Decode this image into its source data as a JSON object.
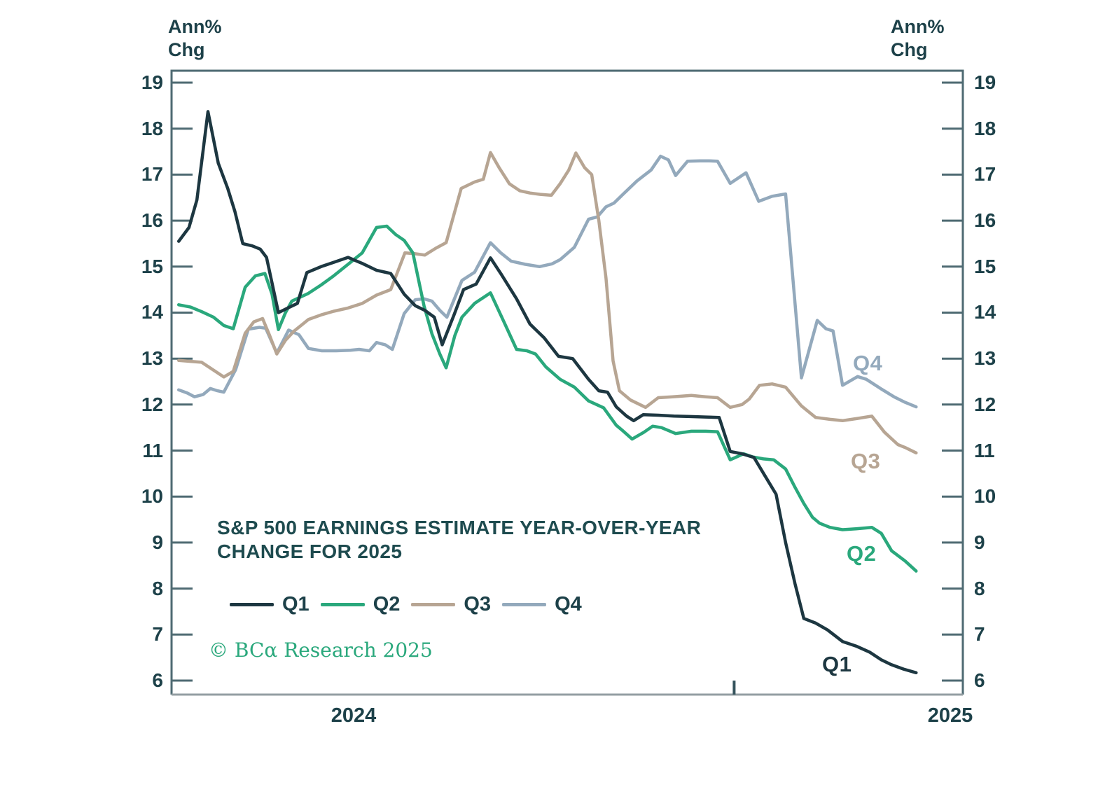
{
  "page": {
    "background": "#ffffff"
  },
  "axis_units": {
    "left": {
      "line1": "Ann%",
      "line2": "Chg"
    },
    "right": {
      "line1": "Ann%",
      "line2": "Chg"
    }
  },
  "footer": {
    "copyright": "© BCα Research 2025",
    "color": "#2aa87c"
  },
  "chart_data": {
    "type": "line",
    "title_line1": "S&P 500 EARNINGS ESTIMATE YEAR-OVER-YEAR",
    "title_line2": "CHANGE FOR 2025",
    "grid": false,
    "legend_position": "inside-bottom-left",
    "y_axis": {
      "unit": "Ann% Chg",
      "min": 6,
      "max": 19,
      "tick_step": 1,
      "sides": "both",
      "ticks": [
        19,
        18,
        17,
        16,
        15,
        14,
        13,
        12,
        11,
        10,
        9,
        8,
        7,
        6
      ]
    },
    "x_axis": {
      "note": "weekly estimate revisions, early 2024 through mid 2025; t = fraction of axis width",
      "labels": [
        {
          "text": "2024",
          "t": 0.23
        },
        {
          "text": "2025",
          "t": 0.984
        }
      ],
      "year_boundary_tick_t": 0.711
    },
    "legend": [
      {
        "label": "Q1",
        "color": "#1d3741"
      },
      {
        "label": "Q2",
        "color": "#2aa87c"
      },
      {
        "label": "Q3",
        "color": "#b7a593"
      },
      {
        "label": "Q4",
        "color": "#93a9bc"
      }
    ],
    "series_labels": [
      {
        "text": "Q4",
        "color": "#93a9bc",
        "t": 0.884,
        "v": 12.88
      },
      {
        "text": "Q3",
        "color": "#b7a593",
        "t": 0.881,
        "v": 10.75
      },
      {
        "text": "Q2",
        "color": "#2aa87c",
        "t": 0.876,
        "v": 8.74
      },
      {
        "text": "Q1",
        "color": "#1d3741",
        "t": 0.845,
        "v": 6.33
      }
    ],
    "series": [
      {
        "name": "Q4",
        "color": "#93a9bc",
        "points": [
          [
            0.009,
            12.32
          ],
          [
            0.02,
            12.25
          ],
          [
            0.029,
            12.17
          ],
          [
            0.04,
            12.22
          ],
          [
            0.049,
            12.35
          ],
          [
            0.058,
            12.3
          ],
          [
            0.066,
            12.27
          ],
          [
            0.081,
            12.76
          ],
          [
            0.097,
            13.64
          ],
          [
            0.111,
            13.68
          ],
          [
            0.119,
            13.66
          ],
          [
            0.133,
            13.12
          ],
          [
            0.148,
            13.62
          ],
          [
            0.161,
            13.52
          ],
          [
            0.173,
            13.22
          ],
          [
            0.19,
            13.17
          ],
          [
            0.208,
            13.17
          ],
          [
            0.226,
            13.18
          ],
          [
            0.237,
            13.2
          ],
          [
            0.25,
            13.17
          ],
          [
            0.259,
            13.35
          ],
          [
            0.27,
            13.3
          ],
          [
            0.279,
            13.2
          ],
          [
            0.294,
            13.98
          ],
          [
            0.308,
            14.28
          ],
          [
            0.319,
            14.3
          ],
          [
            0.329,
            14.25
          ],
          [
            0.339,
            14.05
          ],
          [
            0.348,
            13.9
          ],
          [
            0.367,
            14.7
          ],
          [
            0.383,
            14.88
          ],
          [
            0.403,
            15.52
          ],
          [
            0.416,
            15.3
          ],
          [
            0.429,
            15.12
          ],
          [
            0.447,
            15.05
          ],
          [
            0.465,
            15.0
          ],
          [
            0.481,
            15.06
          ],
          [
            0.491,
            15.15
          ],
          [
            0.509,
            15.42
          ],
          [
            0.527,
            16.03
          ],
          [
            0.538,
            16.08
          ],
          [
            0.549,
            16.3
          ],
          [
            0.559,
            16.38
          ],
          [
            0.571,
            16.58
          ],
          [
            0.588,
            16.86
          ],
          [
            0.606,
            17.1
          ],
          [
            0.618,
            17.4
          ],
          [
            0.628,
            17.32
          ],
          [
            0.637,
            16.98
          ],
          [
            0.652,
            17.29
          ],
          [
            0.668,
            17.3
          ],
          [
            0.679,
            17.3
          ],
          [
            0.69,
            17.29
          ],
          [
            0.706,
            16.81
          ],
          [
            0.726,
            17.04
          ],
          [
            0.742,
            16.42
          ],
          [
            0.759,
            16.53
          ],
          [
            0.776,
            16.58
          ],
          [
            0.796,
            12.58
          ],
          [
            0.816,
            13.83
          ],
          [
            0.827,
            13.65
          ],
          [
            0.836,
            13.6
          ],
          [
            0.848,
            12.42
          ],
          [
            0.867,
            12.61
          ],
          [
            0.878,
            12.55
          ],
          [
            0.896,
            12.35
          ],
          [
            0.913,
            12.17
          ],
          [
            0.927,
            12.05
          ],
          [
            0.941,
            11.95
          ]
        ]
      },
      {
        "name": "Q3",
        "color": "#b7a593",
        "points": [
          [
            0.009,
            12.96
          ],
          [
            0.024,
            12.94
          ],
          [
            0.038,
            12.92
          ],
          [
            0.053,
            12.75
          ],
          [
            0.066,
            12.6
          ],
          [
            0.078,
            12.72
          ],
          [
            0.093,
            13.55
          ],
          [
            0.104,
            13.8
          ],
          [
            0.115,
            13.87
          ],
          [
            0.124,
            13.5
          ],
          [
            0.133,
            13.1
          ],
          [
            0.144,
            13.4
          ],
          [
            0.155,
            13.6
          ],
          [
            0.173,
            13.85
          ],
          [
            0.189,
            13.95
          ],
          [
            0.205,
            14.03
          ],
          [
            0.223,
            14.1
          ],
          [
            0.241,
            14.2
          ],
          [
            0.259,
            14.38
          ],
          [
            0.277,
            14.5
          ],
          [
            0.295,
            15.3
          ],
          [
            0.308,
            15.28
          ],
          [
            0.32,
            15.25
          ],
          [
            0.334,
            15.4
          ],
          [
            0.347,
            15.52
          ],
          [
            0.366,
            16.7
          ],
          [
            0.383,
            16.84
          ],
          [
            0.394,
            16.9
          ],
          [
            0.403,
            17.48
          ],
          [
            0.414,
            17.15
          ],
          [
            0.427,
            16.8
          ],
          [
            0.44,
            16.65
          ],
          [
            0.453,
            16.6
          ],
          [
            0.466,
            16.57
          ],
          [
            0.48,
            16.55
          ],
          [
            0.491,
            16.8
          ],
          [
            0.502,
            17.1
          ],
          [
            0.511,
            17.47
          ],
          [
            0.522,
            17.15
          ],
          [
            0.531,
            17.0
          ],
          [
            0.54,
            16.0
          ],
          [
            0.549,
            14.75
          ],
          [
            0.558,
            12.95
          ],
          [
            0.566,
            12.3
          ],
          [
            0.58,
            12.1
          ],
          [
            0.599,
            11.94
          ],
          [
            0.615,
            12.15
          ],
          [
            0.633,
            12.17
          ],
          [
            0.657,
            12.2
          ],
          [
            0.675,
            12.17
          ],
          [
            0.69,
            12.15
          ],
          [
            0.706,
            11.94
          ],
          [
            0.721,
            12.0
          ],
          [
            0.73,
            12.12
          ],
          [
            0.743,
            12.42
          ],
          [
            0.759,
            12.45
          ],
          [
            0.776,
            12.38
          ],
          [
            0.796,
            11.97
          ],
          [
            0.814,
            11.72
          ],
          [
            0.832,
            11.68
          ],
          [
            0.848,
            11.65
          ],
          [
            0.867,
            11.7
          ],
          [
            0.885,
            11.75
          ],
          [
            0.901,
            11.4
          ],
          [
            0.918,
            11.13
          ],
          [
            0.928,
            11.06
          ],
          [
            0.941,
            10.95
          ]
        ]
      },
      {
        "name": "Q2",
        "color": "#2aa87c",
        "points": [
          [
            0.009,
            14.17
          ],
          [
            0.024,
            14.12
          ],
          [
            0.038,
            14.02
          ],
          [
            0.053,
            13.9
          ],
          [
            0.066,
            13.72
          ],
          [
            0.078,
            13.65
          ],
          [
            0.093,
            14.55
          ],
          [
            0.106,
            14.8
          ],
          [
            0.118,
            14.85
          ],
          [
            0.127,
            14.4
          ],
          [
            0.135,
            13.63
          ],
          [
            0.144,
            14.0
          ],
          [
            0.152,
            14.25
          ],
          [
            0.173,
            14.42
          ],
          [
            0.189,
            14.6
          ],
          [
            0.205,
            14.8
          ],
          [
            0.223,
            15.05
          ],
          [
            0.241,
            15.3
          ],
          [
            0.259,
            15.85
          ],
          [
            0.272,
            15.88
          ],
          [
            0.283,
            15.7
          ],
          [
            0.294,
            15.57
          ],
          [
            0.305,
            15.3
          ],
          [
            0.319,
            14.15
          ],
          [
            0.329,
            13.54
          ],
          [
            0.339,
            13.1
          ],
          [
            0.347,
            12.8
          ],
          [
            0.358,
            13.5
          ],
          [
            0.367,
            13.9
          ],
          [
            0.383,
            14.2
          ],
          [
            0.403,
            14.43
          ],
          [
            0.42,
            13.8
          ],
          [
            0.436,
            13.2
          ],
          [
            0.449,
            13.17
          ],
          [
            0.46,
            13.1
          ],
          [
            0.473,
            12.82
          ],
          [
            0.491,
            12.55
          ],
          [
            0.509,
            12.38
          ],
          [
            0.527,
            12.08
          ],
          [
            0.546,
            11.93
          ],
          [
            0.562,
            11.55
          ],
          [
            0.571,
            11.42
          ],
          [
            0.582,
            11.25
          ],
          [
            0.597,
            11.4
          ],
          [
            0.608,
            11.53
          ],
          [
            0.619,
            11.5
          ],
          [
            0.637,
            11.37
          ],
          [
            0.657,
            11.42
          ],
          [
            0.675,
            11.42
          ],
          [
            0.69,
            11.41
          ],
          [
            0.706,
            10.8
          ],
          [
            0.723,
            10.93
          ],
          [
            0.735,
            10.86
          ],
          [
            0.748,
            10.82
          ],
          [
            0.761,
            10.8
          ],
          [
            0.776,
            10.6
          ],
          [
            0.788,
            10.2
          ],
          [
            0.799,
            9.85
          ],
          [
            0.81,
            9.55
          ],
          [
            0.819,
            9.42
          ],
          [
            0.832,
            9.33
          ],
          [
            0.848,
            9.28
          ],
          [
            0.865,
            9.3
          ],
          [
            0.885,
            9.33
          ],
          [
            0.897,
            9.2
          ],
          [
            0.91,
            8.82
          ],
          [
            0.927,
            8.6
          ],
          [
            0.941,
            8.38
          ]
        ]
      },
      {
        "name": "Q1",
        "color": "#1d3741",
        "points": [
          [
            0.009,
            15.55
          ],
          [
            0.022,
            15.85
          ],
          [
            0.032,
            16.45
          ],
          [
            0.046,
            18.37
          ],
          [
            0.059,
            17.25
          ],
          [
            0.071,
            16.7
          ],
          [
            0.08,
            16.2
          ],
          [
            0.09,
            15.5
          ],
          [
            0.102,
            15.45
          ],
          [
            0.112,
            15.38
          ],
          [
            0.12,
            15.2
          ],
          [
            0.135,
            14.0
          ],
          [
            0.147,
            14.1
          ],
          [
            0.159,
            14.2
          ],
          [
            0.171,
            14.87
          ],
          [
            0.189,
            15.0
          ],
          [
            0.206,
            15.1
          ],
          [
            0.223,
            15.2
          ],
          [
            0.241,
            15.07
          ],
          [
            0.259,
            14.92
          ],
          [
            0.277,
            14.85
          ],
          [
            0.294,
            14.4
          ],
          [
            0.308,
            14.15
          ],
          [
            0.32,
            14.05
          ],
          [
            0.332,
            13.9
          ],
          [
            0.342,
            13.3
          ],
          [
            0.357,
            13.95
          ],
          [
            0.369,
            14.5
          ],
          [
            0.385,
            14.62
          ],
          [
            0.403,
            15.19
          ],
          [
            0.416,
            14.85
          ],
          [
            0.436,
            14.3
          ],
          [
            0.453,
            13.75
          ],
          [
            0.471,
            13.45
          ],
          [
            0.489,
            13.05
          ],
          [
            0.507,
            13.0
          ],
          [
            0.527,
            12.55
          ],
          [
            0.54,
            12.3
          ],
          [
            0.551,
            12.27
          ],
          [
            0.562,
            11.95
          ],
          [
            0.575,
            11.75
          ],
          [
            0.584,
            11.65
          ],
          [
            0.596,
            11.78
          ],
          [
            0.615,
            11.77
          ],
          [
            0.635,
            11.75
          ],
          [
            0.655,
            11.74
          ],
          [
            0.675,
            11.73
          ],
          [
            0.692,
            11.72
          ],
          [
            0.706,
            10.98
          ],
          [
            0.721,
            10.93
          ],
          [
            0.736,
            10.85
          ],
          [
            0.75,
            10.45
          ],
          [
            0.764,
            10.05
          ],
          [
            0.776,
            9.0
          ],
          [
            0.788,
            8.1
          ],
          [
            0.799,
            7.35
          ],
          [
            0.814,
            7.25
          ],
          [
            0.829,
            7.1
          ],
          [
            0.848,
            6.85
          ],
          [
            0.865,
            6.75
          ],
          [
            0.882,
            6.62
          ],
          [
            0.897,
            6.45
          ],
          [
            0.909,
            6.35
          ],
          [
            0.925,
            6.25
          ],
          [
            0.941,
            6.17
          ]
        ]
      }
    ]
  }
}
